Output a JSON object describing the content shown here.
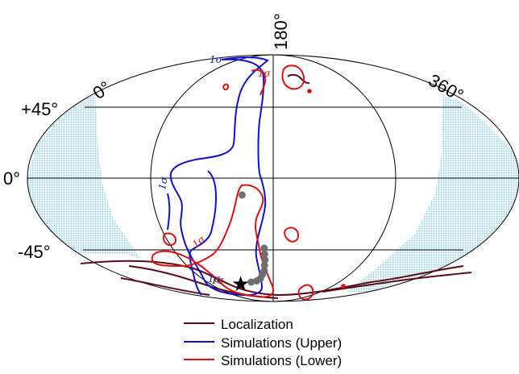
{
  "chart_data": {
    "type": "scatter",
    "projection": "mollweide",
    "title": "",
    "longitude_labels": [
      "0°",
      "180°",
      "360°"
    ],
    "latitude_labels": [
      "+45°",
      "0°",
      "-45°"
    ],
    "grid": true,
    "legend_position": "bottom-center",
    "series": [
      {
        "name": "Localization",
        "color": "#5a0a14",
        "style": "line"
      },
      {
        "name": "Simulations (Upper)",
        "color": "#1010d0",
        "style": "line"
      },
      {
        "name": "Simulations (Lower)",
        "color": "#e01010",
        "style": "line"
      }
    ],
    "contour_labels": {
      "upper": [
        "1σ",
        "1σ",
        "1σ"
      ],
      "lower": [
        "1σ",
        "1σ",
        "1σ"
      ]
    },
    "points": [
      {
        "lon": 157,
        "lat": -10
      },
      {
        "lon": 172,
        "lat": -43
      },
      {
        "lon": 172,
        "lat": -47
      },
      {
        "lon": 172,
        "lat": -51
      },
      {
        "lon": 171,
        "lat": -55
      },
      {
        "lon": 170,
        "lat": -59
      },
      {
        "lon": 167,
        "lat": -62
      },
      {
        "lon": 164,
        "lat": -65
      },
      {
        "lon": 158,
        "lat": -67
      },
      {
        "lon": 150,
        "lat": -68
      }
    ],
    "marker": {
      "symbol": "★",
      "lon": 133,
      "lat": -70
    },
    "excluded_region_color": "#9fd3e4"
  }
}
